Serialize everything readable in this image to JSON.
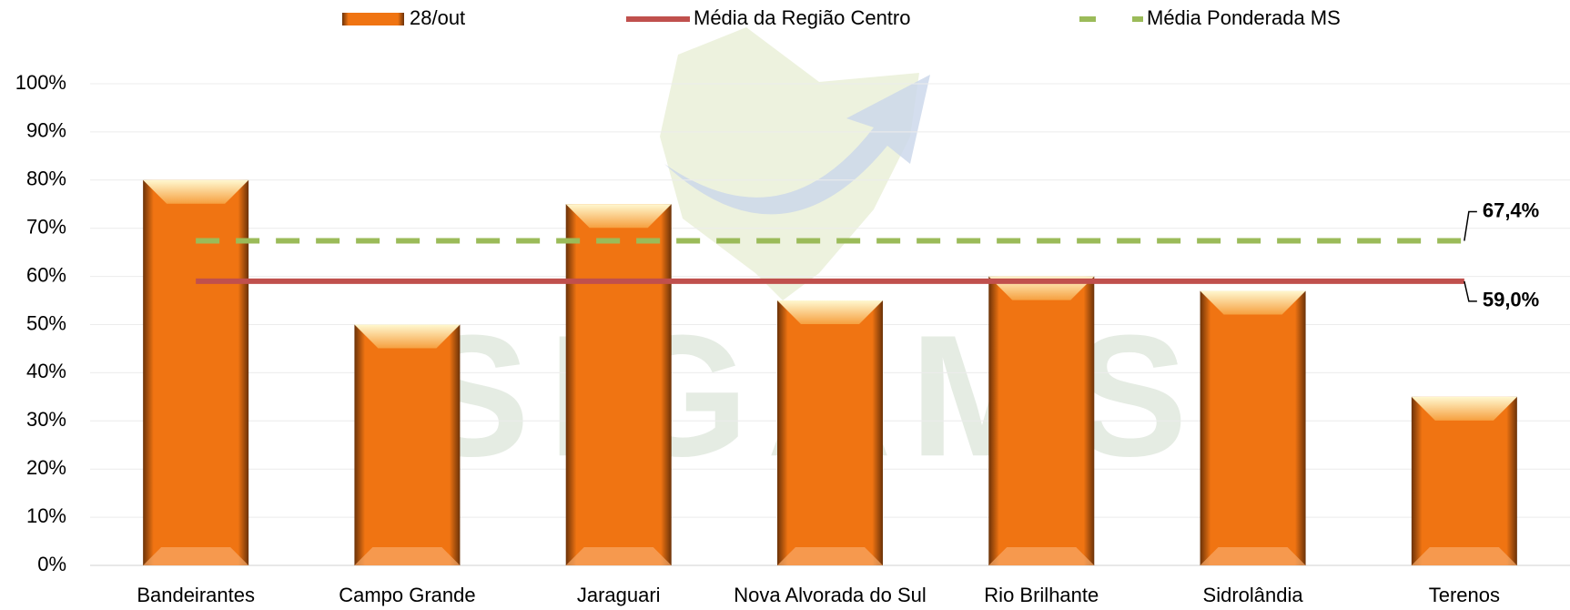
{
  "chart_data": {
    "type": "bar",
    "watermark": "SIGAMS",
    "categories": [
      "Bandeirantes",
      "Campo Grande",
      "Jaraguari",
      "Nova Alvorada do Sul",
      "Rio Brilhante",
      "Sidrolândia",
      "Terenos"
    ],
    "series": [
      {
        "name": "28/out",
        "color": "#f07412",
        "values": [
          80,
          50,
          75,
          55,
          60,
          57,
          35
        ]
      },
      {
        "name": "Média da Região Centro",
        "color": "#c0504d",
        "type": "hline",
        "value": 59.0,
        "value_label": "59,0%"
      },
      {
        "name": "Média Ponderada MS",
        "color": "#9bbb59",
        "type": "hline",
        "dashed": true,
        "value": 67.4,
        "value_label": "67,4%"
      }
    ],
    "ylim": [
      0,
      100
    ],
    "yticks": [
      {
        "value": 0,
        "label": "0%"
      },
      {
        "value": 10,
        "label": "10%"
      },
      {
        "value": 20,
        "label": "20%"
      },
      {
        "value": 30,
        "label": "30%"
      },
      {
        "value": 40,
        "label": "40%"
      },
      {
        "value": 50,
        "label": "50%"
      },
      {
        "value": 60,
        "label": "60%"
      },
      {
        "value": 70,
        "label": "70%"
      },
      {
        "value": 80,
        "label": "80%"
      },
      {
        "value": 90,
        "label": "90%"
      },
      {
        "value": 100,
        "label": "100%"
      }
    ],
    "grid": true,
    "legend": "top"
  }
}
